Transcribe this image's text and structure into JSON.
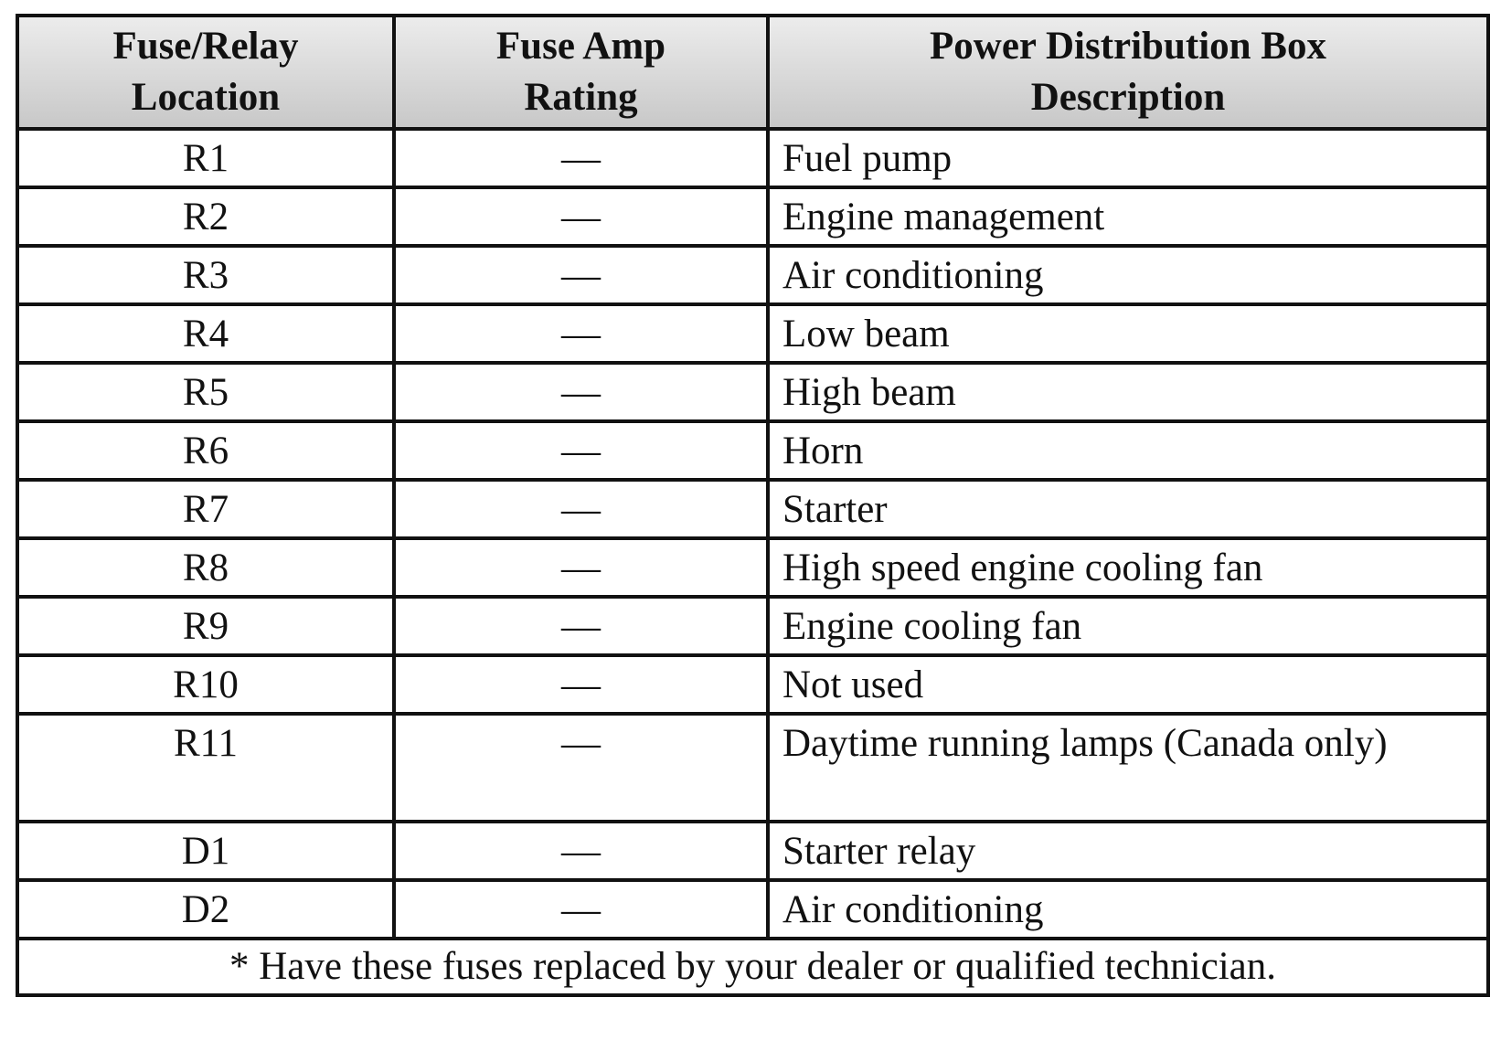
{
  "table": {
    "header": [
      [
        "Fuse/Relay",
        "Location"
      ],
      [
        "Fuse Amp",
        "Rating"
      ],
      [
        "Power Distribution Box",
        "Description"
      ]
    ],
    "rows": [
      [
        "R1",
        "—",
        "Fuel pump"
      ],
      [
        "R2",
        "—",
        "Engine management"
      ],
      [
        "R3",
        "—",
        "Air conditioning"
      ],
      [
        "R4",
        "—",
        "Low beam"
      ],
      [
        "R5",
        "—",
        "High beam"
      ],
      [
        "R6",
        "—",
        "Horn"
      ],
      [
        "R7",
        "—",
        "Starter"
      ],
      [
        "R8",
        "—",
        "High speed engine cooling fan"
      ],
      [
        "R9",
        "—",
        "Engine cooling fan"
      ],
      [
        "R10",
        "—",
        "Not used"
      ],
      [
        "R11",
        "—",
        "Daytime running lamps (Canada only)"
      ],
      [
        "D1",
        "—",
        "Starter relay"
      ],
      [
        "D2",
        "—",
        "Air conditioning"
      ]
    ],
    "footnote": "* Have these fuses replaced by your dealer or qualified technician."
  }
}
